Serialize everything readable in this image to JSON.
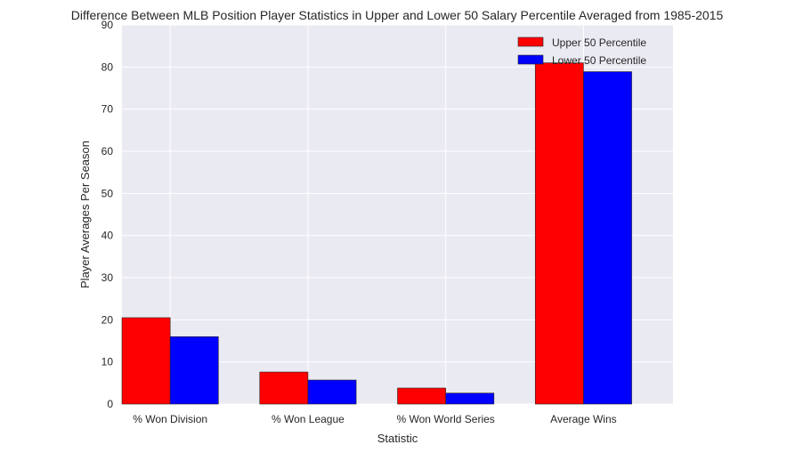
{
  "chart_data": {
    "type": "bar",
    "title": "Difference Between MLB Position Player Statistics in Upper and Lower 50 Salary Percentile Averaged from 1985-2015",
    "xlabel": "Statistic",
    "ylabel": "Player Averages Per Season",
    "categories": [
      "% Won Division",
      "% Won League",
      "% Won World Series",
      "Average Wins"
    ],
    "series": [
      {
        "name": "Upper 50 Percentile",
        "color": "#ff0000",
        "values": [
          20.5,
          7.6,
          3.8,
          81.0
        ]
      },
      {
        "name": "Lower 50 Percentile",
        "color": "#0000ff",
        "values": [
          16.0,
          5.7,
          2.6,
          78.9
        ]
      }
    ],
    "ylim": [
      0,
      90
    ],
    "yticks": [
      0,
      10,
      20,
      30,
      40,
      50,
      60,
      70,
      80,
      90
    ],
    "grid": true,
    "legend_position": "top-right",
    "style": {
      "background": "#eaeaf2",
      "grid_color": "#ffffff"
    }
  }
}
